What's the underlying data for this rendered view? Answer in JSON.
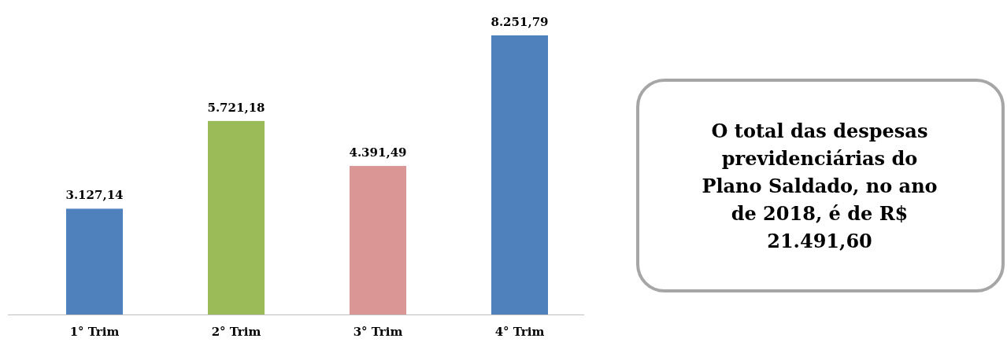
{
  "chart_data": {
    "type": "bar",
    "categories": [
      "1° Trim",
      "2° Trim",
      "3° Trim",
      "4° Trim"
    ],
    "values": [
      3127.14,
      5721.18,
      4391.49,
      8251.79
    ],
    "colors": [
      "#4f81bd",
      "#9bbb59",
      "#d99694",
      "#4f81bd"
    ],
    "value_labels": [
      "3.127,14",
      "5.721,18",
      "4.391,49",
      "8.251,79"
    ],
    "annotations": [
      "O total das despesas previdenciárias do Plano Saldado, no ano de 2018, é de R$ 21.491,60"
    ]
  }
}
